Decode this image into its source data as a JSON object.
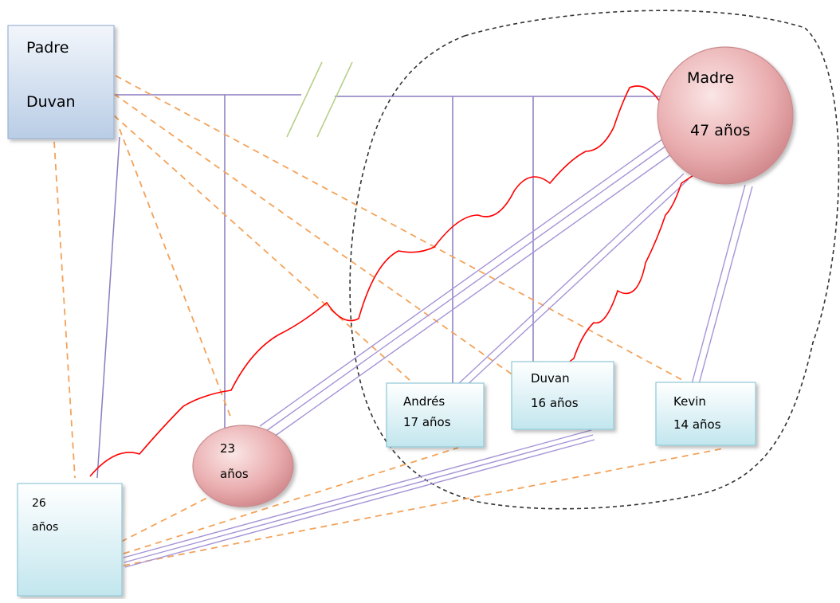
{
  "diagram": {
    "nodes": {
      "padre": {
        "line1": "Padre",
        "line2": "Duvan",
        "shape": "rectangle",
        "color": "#c7d6ea"
      },
      "madre": {
        "line1": "Madre",
        "line2": "47 años",
        "shape": "circle",
        "color": "#e7a8ab"
      },
      "hijo_26": {
        "line1": "26",
        "line2": "años",
        "shape": "rectangle",
        "color": "#cfeaf1"
      },
      "hija_23": {
        "line1": "23",
        "line2": "años",
        "shape": "circle",
        "color": "#e7a8ab"
      },
      "andres": {
        "line1": "Andrés",
        "line2": "17 años",
        "shape": "rectangle",
        "color": "#cfeaf1"
      },
      "duvan_hijo": {
        "line1": "Duvan",
        "line2": "16 años",
        "shape": "rectangle",
        "color": "#cfeaf1"
      },
      "kevin": {
        "line1": "Kevin",
        "line2": "14 años",
        "shape": "rectangle",
        "color": "#cfeaf1"
      }
    },
    "line_colors": {
      "family_line": "#8c7cbf",
      "close_relationship": "#a694d6",
      "distant_relationship": "#f4a259",
      "conflict": "#ff0000",
      "separation_mark": "#b7cf8a",
      "household_boundary": "#333333"
    }
  }
}
